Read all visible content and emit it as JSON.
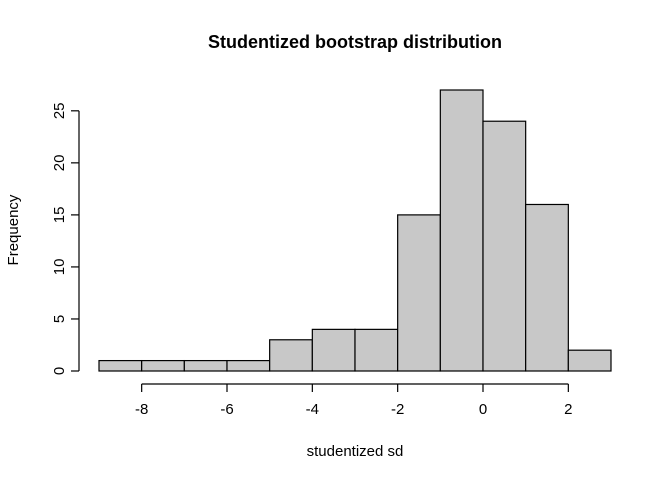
{
  "chart_data": {
    "type": "bar",
    "title": "Studentized bootstrap distribution",
    "xlabel": "studentized sd",
    "ylabel": "Frequency",
    "bins": [
      {
        "x0": -9,
        "x1": -8,
        "count": 1
      },
      {
        "x0": -8,
        "x1": -7,
        "count": 1
      },
      {
        "x0": -7,
        "x1": -6,
        "count": 1
      },
      {
        "x0": -6,
        "x1": -5,
        "count": 1
      },
      {
        "x0": -5,
        "x1": -4,
        "count": 3
      },
      {
        "x0": -4,
        "x1": -3,
        "count": 4
      },
      {
        "x0": -3,
        "x1": -2,
        "count": 4
      },
      {
        "x0": -2,
        "x1": -1,
        "count": 15
      },
      {
        "x0": -1,
        "x1": 0,
        "count": 27
      },
      {
        "x0": 0,
        "x1": 1,
        "count": 24
      },
      {
        "x0": 1,
        "x1": 2,
        "count": 16
      },
      {
        "x0": 2,
        "x1": 3,
        "count": 2
      }
    ],
    "xticks": [
      -8,
      -6,
      -4,
      -2,
      0,
      2
    ],
    "yticks": [
      0,
      5,
      10,
      15,
      20,
      25
    ],
    "xlim": [
      -9,
      3
    ],
    "ylim": [
      0,
      27
    ],
    "bar_color": "#c8c8c8",
    "edge_color": "#000000",
    "grid": false
  }
}
